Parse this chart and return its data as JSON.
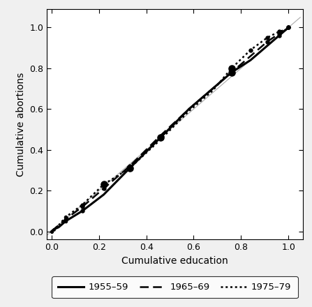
{
  "cohort_1955": {
    "x": [
      0.0,
      0.01,
      0.03,
      0.06,
      0.13,
      0.22,
      0.33,
      0.46,
      0.58,
      0.68,
      0.76,
      0.84,
      0.91,
      0.96,
      0.99,
      1.0
    ],
    "y": [
      0.0,
      0.01,
      0.02,
      0.05,
      0.1,
      0.18,
      0.31,
      0.46,
      0.6,
      0.7,
      0.78,
      0.84,
      0.91,
      0.96,
      0.99,
      1.0
    ],
    "label": "1955–59",
    "linestyle": "solid",
    "linewidth": 2.2,
    "color": "#000000",
    "marker_x": [
      0.0,
      0.06,
      0.13,
      0.33,
      0.46,
      0.76,
      0.96,
      1.0
    ],
    "marker_y": [
      0.0,
      0.05,
      0.1,
      0.31,
      0.46,
      0.78,
      0.96,
      1.0
    ],
    "marker_size": [
      4,
      5,
      6,
      11,
      11,
      11,
      6,
      6
    ]
  },
  "cohort_1965": {
    "x": [
      0.0,
      0.01,
      0.03,
      0.06,
      0.13,
      0.22,
      0.33,
      0.46,
      0.58,
      0.68,
      0.76,
      0.84,
      0.91,
      0.96,
      0.99,
      1.0
    ],
    "y": [
      0.0,
      0.01,
      0.03,
      0.06,
      0.12,
      0.21,
      0.32,
      0.47,
      0.6,
      0.7,
      0.78,
      0.86,
      0.93,
      0.97,
      0.99,
      1.0
    ],
    "label": "1965–69",
    "linestyle": "dashed",
    "linewidth": 1.8,
    "color": "#000000",
    "marker_x": [
      0.0,
      0.06,
      0.13,
      0.22,
      0.33,
      0.76,
      0.91,
      0.96,
      1.0
    ],
    "marker_y": [
      0.0,
      0.06,
      0.12,
      0.21,
      0.32,
      0.78,
      0.93,
      0.97,
      1.0
    ],
    "marker_size": [
      4,
      5,
      6,
      6,
      6,
      6,
      6,
      6,
      6
    ]
  },
  "cohort_1975": {
    "x": [
      0.0,
      0.01,
      0.03,
      0.06,
      0.13,
      0.22,
      0.33,
      0.46,
      0.58,
      0.68,
      0.76,
      0.84,
      0.91,
      0.96,
      0.99,
      1.0
    ],
    "y": [
      0.0,
      0.01,
      0.03,
      0.07,
      0.13,
      0.23,
      0.31,
      0.45,
      0.59,
      0.69,
      0.8,
      0.89,
      0.95,
      0.98,
      0.99,
      1.0
    ],
    "label": "1975–79",
    "linestyle": "dotted",
    "linewidth": 1.8,
    "color": "#000000",
    "marker_x": [
      0.0,
      0.01,
      0.06,
      0.13,
      0.22,
      0.76,
      0.84,
      0.91,
      0.96,
      1.0
    ],
    "marker_y": [
      0.0,
      0.01,
      0.07,
      0.13,
      0.23,
      0.8,
      0.89,
      0.95,
      0.98,
      1.0
    ],
    "marker_size": [
      4,
      4,
      5,
      6,
      11,
      11,
      6,
      6,
      6,
      6
    ]
  },
  "diagonal": {
    "x": [
      -0.02,
      1.05
    ],
    "y": [
      -0.02,
      1.05
    ],
    "color": "#aaaaaa",
    "linewidth": 0.8,
    "linestyle": "solid"
  },
  "xlim": [
    -0.02,
    1.06
  ],
  "ylim": [
    -0.04,
    1.09
  ],
  "xlabel": "Cumulative education",
  "ylabel": "Cumulative abortions",
  "xticks": [
    0.0,
    0.2,
    0.4,
    0.6,
    0.8,
    1.0
  ],
  "yticks": [
    0.0,
    0.2,
    0.4,
    0.6,
    0.8,
    1.0
  ],
  "legend_labels": [
    "1955–59",
    "1965–69",
    "1975–79"
  ],
  "legend_linestyles": [
    "solid",
    "dashed",
    "dotted"
  ],
  "legend_linewidths": [
    2.2,
    1.8,
    1.8
  ],
  "background_color": "#f0f0f0",
  "plot_bg_color": "#ffffff"
}
